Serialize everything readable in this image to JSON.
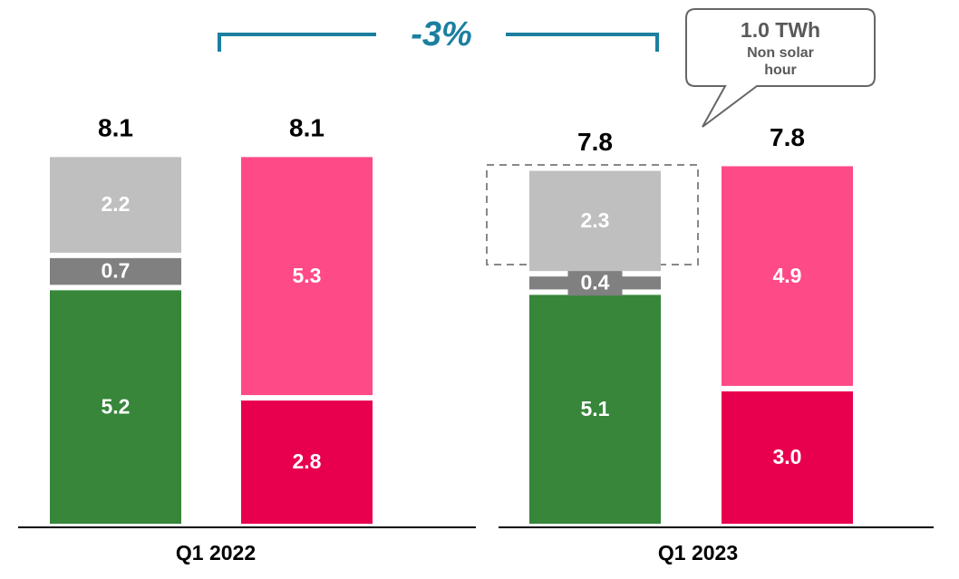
{
  "chart_data": {
    "type": "bar",
    "stacked": true,
    "change_label": "-3%",
    "callout": {
      "value": "1.0 TWh",
      "lines": [
        "Non solar",
        "hour"
      ]
    },
    "groups": [
      {
        "label": "Q1  2022",
        "bars": [
          {
            "total": 8.1,
            "values": [
              5.2,
              0.7,
              2.2
            ],
            "colors": [
              "#37863a",
              "#808080",
              "#bfbfbf"
            ]
          },
          {
            "total": 8.1,
            "values": [
              2.8,
              5.3
            ],
            "colors": [
              "#e8004f",
              "#ff4a88"
            ]
          }
        ]
      },
      {
        "label": "Q1 2023",
        "bars": [
          {
            "total": 7.8,
            "values": [
              5.1,
              0.4,
              2.3
            ],
            "colors": [
              "#37863a",
              "#808080",
              "#bfbfbf"
            ]
          },
          {
            "total": 7.8,
            "values": [
              3,
              4.9
            ],
            "value_labels": [
              "3.0",
              "4.9"
            ],
            "colors": [
              "#e8004f",
              "#ff4a88"
            ]
          }
        ]
      }
    ]
  }
}
